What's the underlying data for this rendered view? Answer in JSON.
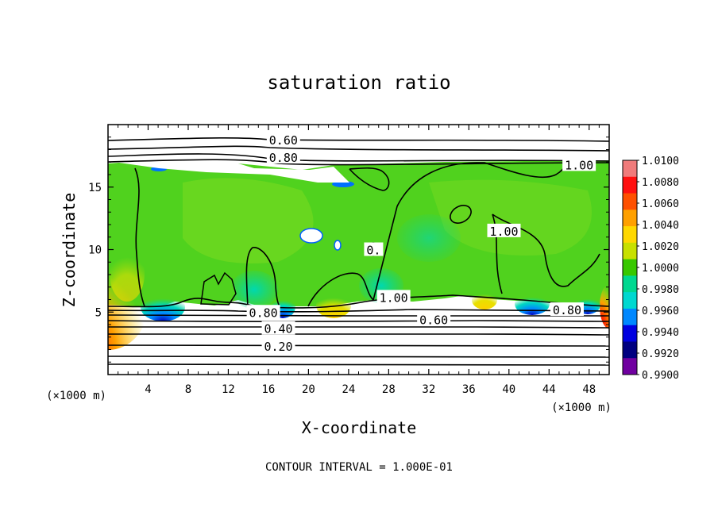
{
  "chart_data": {
    "type": "heatmap",
    "title": "saturation ratio",
    "xlabel": "X-coordinate",
    "ylabel": "Z-coordinate",
    "x_unit": "(×1000 m)",
    "y_unit": "(×1000 m)",
    "xlim": [
      0,
      50
    ],
    "ylim": [
      0,
      20
    ],
    "x_ticks": [
      4,
      8,
      12,
      16,
      20,
      24,
      28,
      32,
      36,
      40,
      44,
      48
    ],
    "y_ticks": [
      5,
      10,
      15
    ],
    "contour_interval_text": "CONTOUR INTERVAL = 1.000E-01",
    "contour_labels": [
      {
        "text": "0.60",
        "x": 17.5,
        "z": 18.8
      },
      {
        "text": "0.80",
        "x": 17.5,
        "z": 17.4
      },
      {
        "text": "1.00",
        "x": 47.0,
        "z": 16.8
      },
      {
        "text": "1.00",
        "x": 39.5,
        "z": 11.5
      },
      {
        "text": "1.00",
        "x": 28.5,
        "z": 6.2
      },
      {
        "text": "0.80",
        "x": 15.5,
        "z": 5.0
      },
      {
        "text": "0.80",
        "x": 45.8,
        "z": 5.2
      },
      {
        "text": "0.60",
        "x": 32.5,
        "z": 4.4
      },
      {
        "text": "0.40",
        "x": 17.0,
        "z": 3.7
      },
      {
        "text": "0.20",
        "x": 17.0,
        "z": 2.3
      },
      {
        "text": "0.",
        "x": 26.5,
        "z": 10.0
      }
    ],
    "colorbar": {
      "min": 0.99,
      "max": 1.01,
      "labels": [
        "1.0100",
        "1.0080",
        "1.0060",
        "1.0040",
        "1.0020",
        "1.0000",
        "0.9980",
        "0.9960",
        "0.9940",
        "0.9920",
        "0.9900"
      ],
      "colors": [
        "#f07b7b",
        "#ff1010",
        "#ff5000",
        "#ffa000",
        "#ffd800",
        "#c8e000",
        "#38c800",
        "#00d890",
        "#00d8d0",
        "#0088ff",
        "#0000e0",
        "#000080",
        "#7000a0"
      ]
    },
    "colors": {
      "field_main": "#50d21e",
      "field_alt": "#7ad81e"
    }
  }
}
